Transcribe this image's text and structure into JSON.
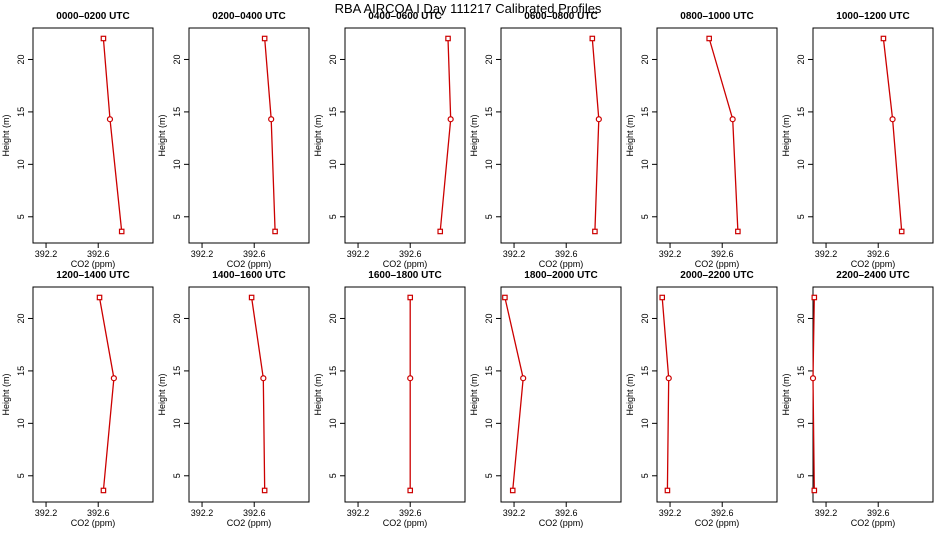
{
  "figure": {
    "title": "RBA AIRCOA I  Day 111217  Calibrated Profiles"
  },
  "style": {
    "line_color": "#cc0000",
    "axis_color": "#000000"
  },
  "chart_data": [
    {
      "type": "line",
      "title": "0000–0200 UTC",
      "xlabel": "CO2 (ppm)",
      "ylabel": "Height (m)",
      "xticks": [
        "392.2",
        "392.6"
      ],
      "yticks": [
        5,
        10,
        15,
        20
      ],
      "xlim": [
        392.1,
        393.02
      ],
      "ylim": [
        2.5,
        23
      ],
      "x": [
        392.64,
        392.69,
        392.78
      ],
      "y": [
        22,
        14.3,
        3.6
      ]
    },
    {
      "type": "line",
      "title": "0200–0400 UTC",
      "xlabel": "CO2 (ppm)",
      "ylabel": "Height (m)",
      "xticks": [
        "392.2",
        "392.6"
      ],
      "yticks": [
        5,
        10,
        15,
        20
      ],
      "xlim": [
        392.1,
        393.02
      ],
      "ylim": [
        2.5,
        23
      ],
      "x": [
        392.68,
        392.73,
        392.76
      ],
      "y": [
        22,
        14.3,
        3.6
      ]
    },
    {
      "type": "line",
      "title": "0400–0600 UTC",
      "xlabel": "CO2 (ppm)",
      "ylabel": "Height (m)",
      "xticks": [
        "392.2",
        "392.6"
      ],
      "yticks": [
        5,
        10,
        15,
        20
      ],
      "xlim": [
        392.1,
        393.02
      ],
      "ylim": [
        2.5,
        23
      ],
      "x": [
        392.89,
        392.91,
        392.83
      ],
      "y": [
        22,
        14.3,
        3.6
      ]
    },
    {
      "type": "line",
      "title": "0600–0800 UTC",
      "xlabel": "CO2 (ppm)",
      "ylabel": "Height (m)",
      "xticks": [
        "392.2",
        "392.6"
      ],
      "yticks": [
        5,
        10,
        15,
        20
      ],
      "xlim": [
        392.1,
        393.02
      ],
      "ylim": [
        2.5,
        23
      ],
      "x": [
        392.8,
        392.85,
        392.82
      ],
      "y": [
        22,
        14.3,
        3.6
      ]
    },
    {
      "type": "line",
      "title": "0800–1000 UTC",
      "xlabel": "CO2 (ppm)",
      "ylabel": "Height (m)",
      "xticks": [
        "392.2",
        "392.6"
      ],
      "yticks": [
        5,
        10,
        15,
        20
      ],
      "xlim": [
        392.1,
        393.02
      ],
      "ylim": [
        2.5,
        23
      ],
      "x": [
        392.5,
        392.68,
        392.72
      ],
      "y": [
        22,
        14.3,
        3.6
      ]
    },
    {
      "type": "line",
      "title": "1000–1200 UTC",
      "xlabel": "CO2 (ppm)",
      "ylabel": "Height (m)",
      "xticks": [
        "392.2",
        "392.6"
      ],
      "yticks": [
        5,
        10,
        15,
        20
      ],
      "xlim": [
        392.1,
        393.02
      ],
      "ylim": [
        2.5,
        23
      ],
      "x": [
        392.64,
        392.71,
        392.78
      ],
      "y": [
        22,
        14.3,
        3.6
      ]
    },
    {
      "type": "line",
      "title": "1200–1400 UTC",
      "xlabel": "CO2 (ppm)",
      "ylabel": "Height (m)",
      "xticks": [
        "392.2",
        "392.6"
      ],
      "yticks": [
        5,
        10,
        15,
        20
      ],
      "xlim": [
        392.1,
        393.02
      ],
      "ylim": [
        2.5,
        23
      ],
      "x": [
        392.61,
        392.72,
        392.64
      ],
      "y": [
        22,
        14.3,
        3.6
      ]
    },
    {
      "type": "line",
      "title": "1400–1600 UTC",
      "xlabel": "CO2 (ppm)",
      "ylabel": "Height (m)",
      "xticks": [
        "392.2",
        "392.6"
      ],
      "yticks": [
        5,
        10,
        15,
        20
      ],
      "xlim": [
        392.1,
        393.02
      ],
      "ylim": [
        2.5,
        23
      ],
      "x": [
        392.58,
        392.67,
        392.68
      ],
      "y": [
        22,
        14.3,
        3.6
      ]
    },
    {
      "type": "line",
      "title": "1600–1800 UTC",
      "xlabel": "CO2 (ppm)",
      "ylabel": "Height (m)",
      "xticks": [
        "392.2",
        "392.6"
      ],
      "yticks": [
        5,
        10,
        15,
        20
      ],
      "xlim": [
        392.1,
        393.02
      ],
      "ylim": [
        2.5,
        23
      ],
      "x": [
        392.6,
        392.6,
        392.6
      ],
      "y": [
        22,
        14.3,
        3.6
      ]
    },
    {
      "type": "line",
      "title": "1800–2000 UTC",
      "xlabel": "CO2 (ppm)",
      "ylabel": "Height (m)",
      "xticks": [
        "392.2",
        "392.6"
      ],
      "yticks": [
        5,
        10,
        15,
        20
      ],
      "xlim": [
        392.1,
        393.02
      ],
      "ylim": [
        2.5,
        23
      ],
      "x": [
        392.13,
        392.27,
        392.19
      ],
      "y": [
        22,
        14.3,
        3.6
      ]
    },
    {
      "type": "line",
      "title": "2000–2200 UTC",
      "xlabel": "CO2 (ppm)",
      "ylabel": "Height (m)",
      "xticks": [
        "392.2",
        "392.6"
      ],
      "yticks": [
        5,
        10,
        15,
        20
      ],
      "xlim": [
        392.1,
        393.02
      ],
      "ylim": [
        2.5,
        23
      ],
      "x": [
        392.14,
        392.19,
        392.18
      ],
      "y": [
        22,
        14.3,
        3.6
      ]
    },
    {
      "type": "line",
      "title": "2200–2400 UTC",
      "xlabel": "CO2 (ppm)",
      "ylabel": "Height (m)",
      "xticks": [
        "392.2",
        "392.6"
      ],
      "yticks": [
        5,
        10,
        15,
        20
      ],
      "xlim": [
        392.1,
        393.02
      ],
      "ylim": [
        2.5,
        23
      ],
      "x": [
        392.11,
        392.1,
        392.11
      ],
      "y": [
        22,
        14.3,
        3.6
      ]
    }
  ]
}
